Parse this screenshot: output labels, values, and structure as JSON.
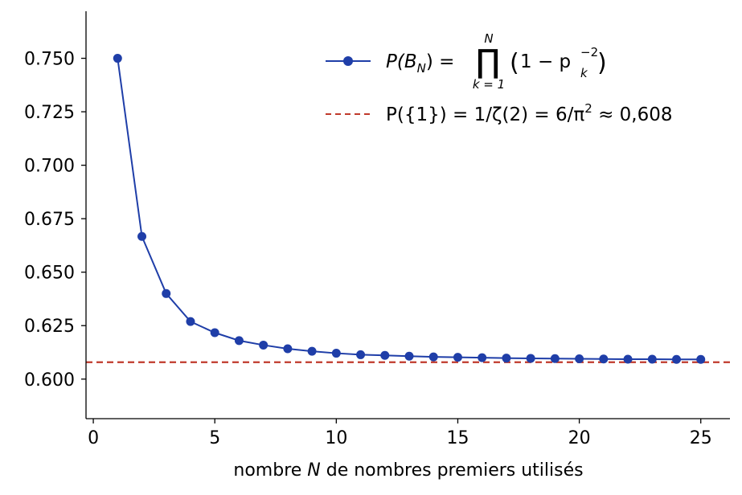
{
  "chart_data": {
    "type": "line",
    "xlabel_parts": [
      "nombre ",
      "N",
      " de nombres premiers utilisés"
    ],
    "xlim": [
      -0.3,
      26.2
    ],
    "ylim": [
      0.5815,
      0.772
    ],
    "xticks": [
      0,
      5,
      10,
      15,
      20,
      25
    ],
    "yticks": [
      0.6,
      0.625,
      0.65,
      0.675,
      0.7,
      0.725,
      0.75
    ],
    "ytick_labels": [
      "0.600",
      "0.625",
      "0.650",
      "0.675",
      "0.700",
      "0.725",
      "0.750"
    ],
    "grid": false,
    "legend_position": "top-right",
    "series": [
      {
        "name": "P(B_N) = ∏_{k=1}^{N} (1 − p_k^{−2})",
        "style": "line-with-markers",
        "color": "#1f3ea8",
        "x": [
          1,
          2,
          3,
          4,
          5,
          6,
          7,
          8,
          9,
          10,
          11,
          12,
          13,
          14,
          15,
          16,
          17,
          18,
          19,
          20,
          21,
          22,
          23,
          24,
          25
        ],
        "y": [
          0.75,
          0.6667,
          0.64,
          0.6269,
          0.6217,
          0.618,
          0.6159,
          0.6142,
          0.613,
          0.6121,
          0.6114,
          0.6111,
          0.6107,
          0.6104,
          0.6102,
          0.61,
          0.6098,
          0.6097,
          0.6096,
          0.6095,
          0.6094,
          0.6093,
          0.6093,
          0.6092,
          0.6092
        ]
      },
      {
        "name": "P({1}) = 1/ζ(2) = 6/π² ≈ 0,608",
        "style": "dashed-horizontal",
        "color": "#c0392b",
        "y": 0.6079
      }
    ]
  },
  "legend": {
    "item1": {
      "lhs": "P(B",
      "lhs_sub": "N",
      "lhs_end": ") =",
      "prod": "∏",
      "prod_upper": "N",
      "prod_lower": "k = 1",
      "paren_open": "(",
      "body": "1 − p",
      "sup": "−2",
      "sub": "k",
      "paren_close": ")"
    },
    "item2": {
      "text_a": "P({1}) = 1/ζ(2) = 6/π",
      "sup": "2",
      "text_b": " ≈ 0,608"
    }
  }
}
